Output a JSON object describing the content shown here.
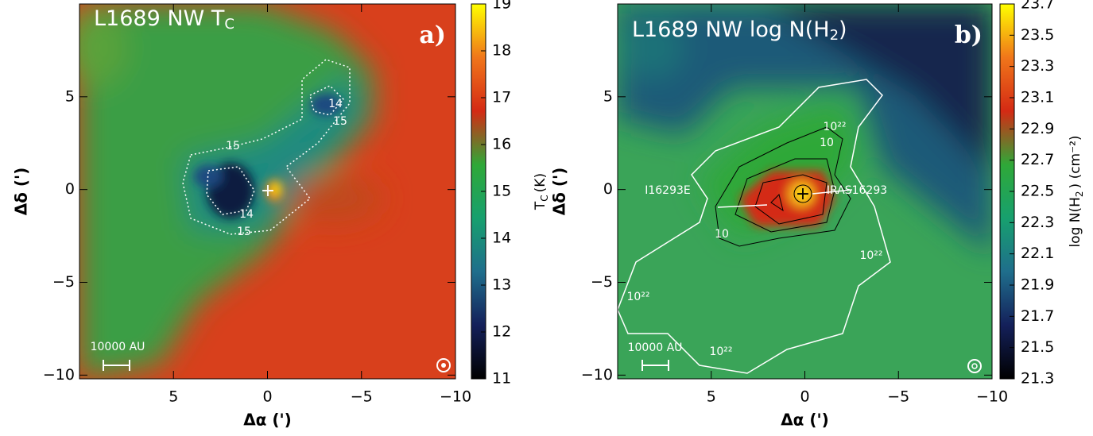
{
  "chart_data": [
    {
      "type": "heatmap",
      "title": "L1689 NW T",
      "title_sub": "C",
      "panel_label": "a)",
      "xlabel": "Δα (')",
      "ylabel": "Δδ (')",
      "xlim": [
        10,
        -10
      ],
      "ylim": [
        -10.2,
        10
      ],
      "xticks": [
        5,
        0,
        {
          "value": -5,
          "label": "−5"
        },
        {
          "value": -10,
          "label": "−10"
        }
      ],
      "yticks": [
        5,
        0,
        {
          "value": -5,
          "label": "−5"
        },
        {
          "value": -10,
          "label": "−10"
        }
      ],
      "colorbar_label": "T",
      "colorbar_label_sub": "C",
      "colorbar_label_unit": "(K)",
      "clim": [
        11,
        19
      ],
      "cticks": [
        11,
        12,
        13,
        14,
        15,
        16,
        17,
        18,
        19
      ],
      "colors": [
        "#000000",
        "#14205a",
        "#1f6e8c",
        "#17a06e",
        "#2fa838",
        "#d42a14",
        "#f0761a",
        "#ffff00"
      ],
      "annotations": [
        "15",
        "14",
        "15",
        "14",
        "15",
        "10000 AU"
      ]
    },
    {
      "type": "heatmap",
      "title": "L1689 NW log N(H",
      "title_sub": "2",
      "title_end": ")",
      "panel_label": "b)",
      "xlabel": "Δα (')",
      "ylabel": "Δδ (')",
      "xlim": [
        10,
        -10
      ],
      "ylim": [
        -10.2,
        10
      ],
      "xticks": [
        5,
        0,
        {
          "value": -5,
          "label": "−5"
        },
        {
          "value": -10,
          "label": "−10"
        }
      ],
      "yticks": [
        5,
        0,
        {
          "value": -5,
          "label": "−5"
        },
        {
          "value": -10,
          "label": "−10"
        }
      ],
      "colorbar_label": "log N(H",
      "colorbar_label_sub": "2",
      "colorbar_label_unit": ") (cm⁻²)",
      "clim": [
        21.3,
        23.7
      ],
      "cticks": [
        21.3,
        21.5,
        21.7,
        21.9,
        22.1,
        22.3,
        22.5,
        22.7,
        22.9,
        23.1,
        23.3,
        23.5,
        23.7
      ],
      "colors": [
        "#000000",
        "#14205a",
        "#1f6e8c",
        "#17a06e",
        "#2fa838",
        "#d42a14",
        "#f0761a",
        "#ffff00"
      ],
      "annotations": [
        "I16293E",
        "IRAS16293",
        "10²²",
        "10²²",
        "10²²",
        "10²²",
        "10",
        "10",
        "10000 AU"
      ]
    }
  ]
}
